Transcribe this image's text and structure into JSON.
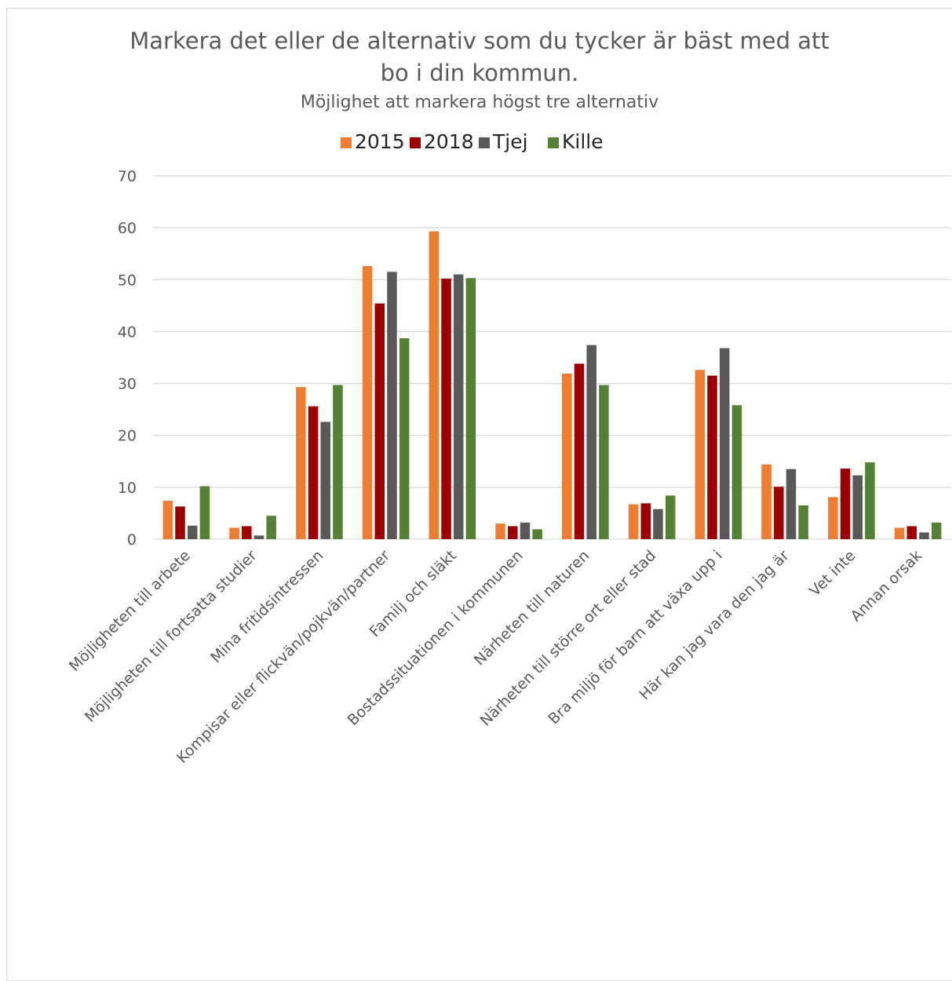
{
  "chart_data": {
    "type": "bar",
    "title": [
      "Markera det eller de alternativ som du tycker är bäst med att",
      "bo i din kommun."
    ],
    "subtitle": "Möjlighet att markera högst tre alternativ",
    "xlabel": "",
    "ylabel": "",
    "ylim": [
      0,
      70
    ],
    "yticks": [
      "0",
      "10",
      "20",
      "30",
      "40",
      "50",
      "60",
      "70"
    ],
    "grid": true,
    "legend_position": "top",
    "categories": [
      "Möjligheten till arbete",
      "Möjligheten till fortsatta studier",
      "Mina fritidsintressen",
      "Kompisar eller flickvän/pojkvän/partner",
      "Familj och släkt",
      "Bostadssituationen i kommunen",
      "Närheten till naturen",
      "Närheten till större ort eller stad",
      "Bra miljö för barn att växa upp i",
      "Här kan jag vara den jag är",
      "Vet inte",
      "Annan orsak"
    ],
    "series": [
      {
        "name": "2015",
        "color": "#ed7d31",
        "values": [
          7.4,
          2.2,
          29.3,
          52.6,
          59.3,
          3.0,
          31.9,
          6.7,
          32.6,
          14.4,
          8.1,
          2.2
        ]
      },
      {
        "name": "2018",
        "color": "#9e0000",
        "values": [
          6.3,
          2.5,
          25.6,
          45.4,
          50.2,
          2.5,
          33.8,
          6.9,
          31.5,
          10.1,
          13.6,
          2.5
        ]
      },
      {
        "name": "Tjej",
        "color": "#595959",
        "values": [
          2.6,
          0.7,
          22.6,
          51.5,
          51.0,
          3.2,
          37.4,
          5.8,
          36.8,
          13.5,
          12.3,
          1.3
        ]
      },
      {
        "name": "Kille",
        "color": "#548235",
        "values": [
          10.2,
          4.5,
          29.7,
          38.7,
          50.3,
          1.9,
          29.7,
          8.4,
          25.8,
          6.5,
          14.8,
          3.2
        ]
      }
    ]
  }
}
